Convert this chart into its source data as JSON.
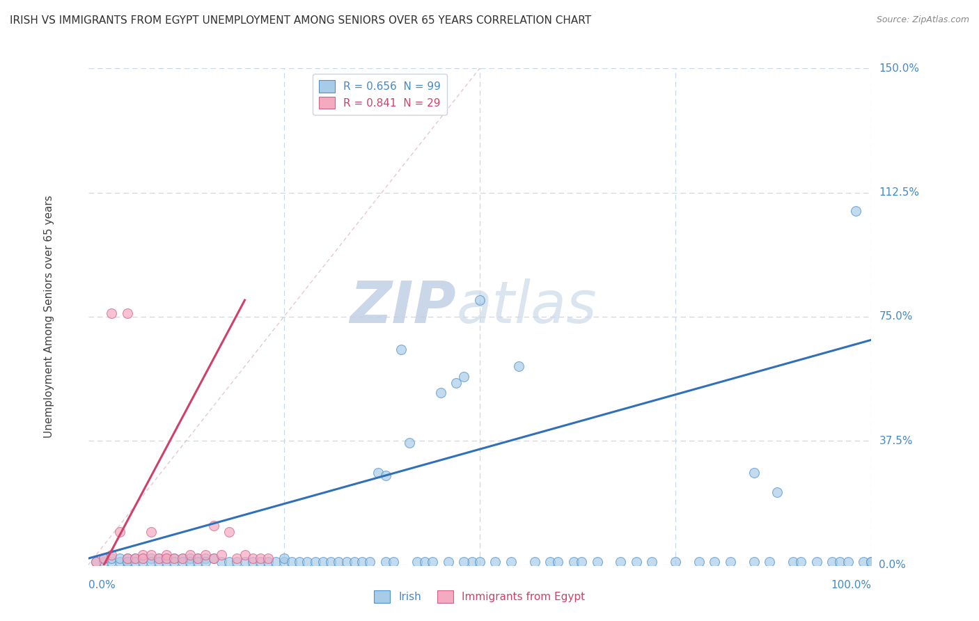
{
  "title": "IRISH VS IMMIGRANTS FROM EGYPT UNEMPLOYMENT AMONG SENIORS OVER 65 YEARS CORRELATION CHART",
  "source": "Source: ZipAtlas.com",
  "ylabel": "Unemployment Among Seniors over 65 years",
  "xlim": [
    0,
    100
  ],
  "ylim": [
    0,
    150
  ],
  "yticks": [
    0,
    37.5,
    75,
    112.5,
    150
  ],
  "ytick_labels": [
    "0.0%",
    "37.5%",
    "75.0%",
    "112.5%",
    "150.0%"
  ],
  "xtick_labels_show": [
    "0.0%",
    "100.0%"
  ],
  "irish_color": "#a8cce8",
  "egypt_color": "#f4aac0",
  "irish_edge_color": "#5090c8",
  "egypt_edge_color": "#d06088",
  "irish_line_color": "#3070b8",
  "egypt_line_color": "#d04068",
  "egypt_dash_color": "#d8b0c0",
  "background_color": "#ffffff",
  "grid_color": "#c8d8ec",
  "title_color": "#303030",
  "ylabel_color": "#404040",
  "tick_color": "#4488cc",
  "source_color": "#888888",
  "watermark_text": "ZIPatlas",
  "watermark_color": "#d8e8f4",
  "legend_label_irish": "R = 0.656  N = 99",
  "legend_label_egypt": "R = 0.841  N = 29",
  "legend_text_color_irish": "#4488cc",
  "legend_text_color_egypt": "#d04068",
  "bottom_label_irish": "Irish",
  "bottom_label_egypt": "Immigrants from Egypt",
  "irish_x": [
    1,
    2,
    2,
    3,
    3,
    4,
    4,
    5,
    5,
    5,
    6,
    6,
    7,
    7,
    8,
    8,
    9,
    9,
    10,
    10,
    11,
    11,
    12,
    12,
    13,
    13,
    14,
    14,
    15,
    15,
    16,
    17,
    18,
    19,
    20,
    21,
    22,
    23,
    24,
    25,
    25,
    26,
    27,
    28,
    29,
    30,
    31,
    32,
    33,
    34,
    35,
    36,
    37,
    38,
    38,
    39,
    40,
    41,
    42,
    43,
    44,
    45,
    46,
    47,
    48,
    49,
    50,
    52,
    54,
    55,
    57,
    59,
    60,
    62,
    65,
    70,
    72,
    75,
    78,
    80,
    82,
    85,
    87,
    88,
    90,
    91,
    93,
    95,
    96,
    98,
    99,
    100,
    48,
    50,
    63,
    68,
    85,
    97,
    100
  ],
  "irish_y": [
    1,
    1,
    2,
    1,
    2,
    1,
    2,
    1,
    2,
    1,
    2,
    1,
    2,
    1,
    2,
    1,
    2,
    1,
    2,
    1,
    2,
    1,
    2,
    1,
    2,
    1,
    2,
    1,
    2,
    1,
    2,
    1,
    1,
    1,
    1,
    1,
    1,
    1,
    1,
    1,
    2,
    1,
    1,
    1,
    1,
    1,
    1,
    1,
    1,
    1,
    1,
    1,
    28,
    27,
    1,
    1,
    65,
    37,
    1,
    1,
    1,
    52,
    1,
    55,
    57,
    1,
    80,
    1,
    1,
    60,
    1,
    1,
    1,
    1,
    1,
    1,
    1,
    1,
    1,
    1,
    1,
    1,
    1,
    22,
    1,
    1,
    1,
    1,
    1,
    107,
    1,
    1,
    1,
    1,
    1,
    1,
    28,
    1,
    1
  ],
  "egypt_x": [
    1,
    2,
    3,
    3,
    4,
    5,
    5,
    6,
    7,
    7,
    8,
    8,
    9,
    10,
    10,
    11,
    12,
    13,
    14,
    15,
    16,
    16,
    17,
    18,
    19,
    20,
    21,
    22,
    23
  ],
  "egypt_y": [
    1,
    2,
    76,
    3,
    10,
    76,
    2,
    2,
    3,
    2,
    3,
    10,
    2,
    3,
    2,
    2,
    2,
    3,
    2,
    3,
    12,
    2,
    3,
    10,
    2,
    3,
    2,
    2,
    2
  ],
  "irish_line_x0": 0,
  "irish_line_y0": 2,
  "irish_line_x1": 100,
  "irish_line_y1": 68,
  "egypt_line_x0": 2,
  "egypt_line_y0": 0,
  "egypt_line_x1": 20,
  "egypt_line_y1": 80,
  "egypt_dash_x0": 0,
  "egypt_dash_y0": 0,
  "egypt_dash_x1": 50,
  "egypt_dash_y1": 150
}
